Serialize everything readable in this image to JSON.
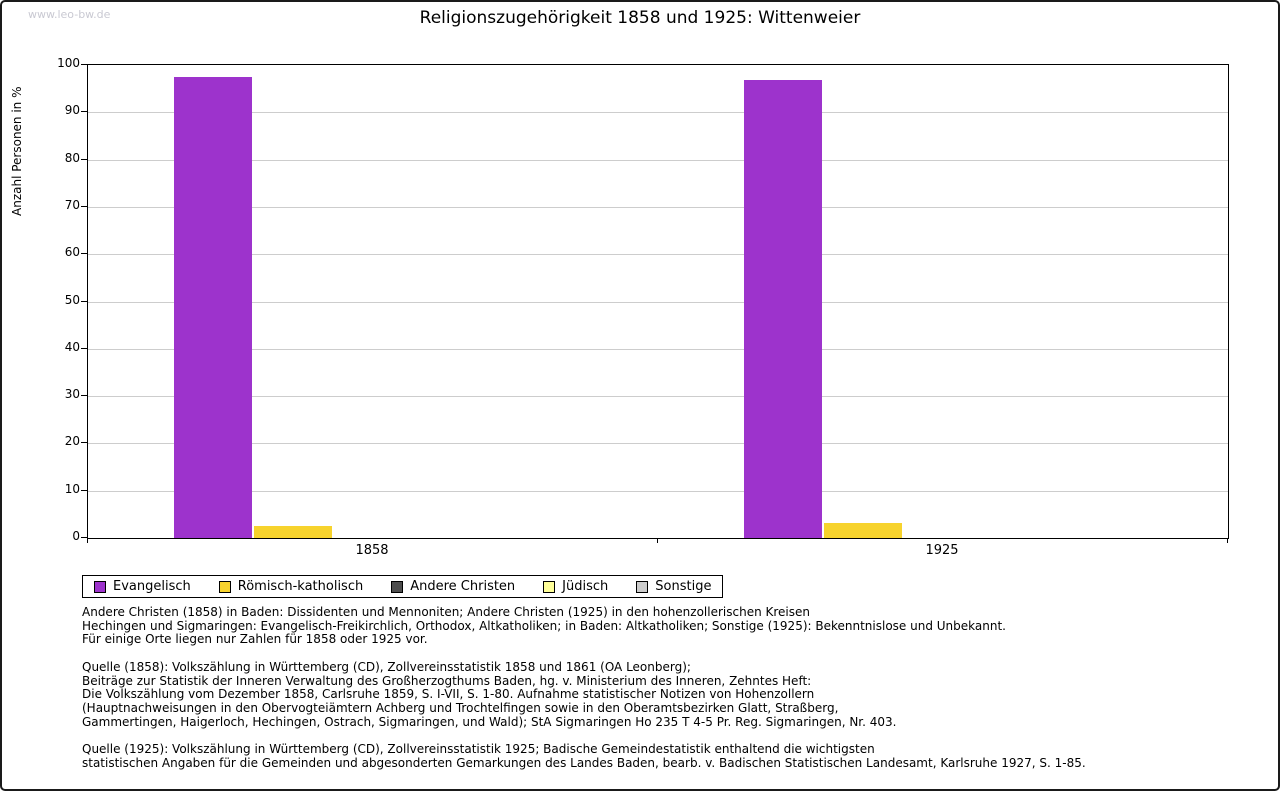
{
  "watermark": "www.leo-bw.de",
  "chart_data": {
    "type": "bar",
    "title": "Religionszugehörigkeit 1858 und 1925: Wittenweier",
    "xlabel": "",
    "ylabel": "Anzahl Personen in %",
    "ylim": [
      0,
      100
    ],
    "ytick_step": 10,
    "grid": true,
    "legend_position": "bottom-left",
    "categories": [
      "1858",
      "1925"
    ],
    "series": [
      {
        "name": "Evangelisch",
        "color": "#9d33cc",
        "values": [
          97.4,
          96.9
        ]
      },
      {
        "name": "Römisch-katholisch",
        "color": "#f7d32d",
        "values": [
          2.6,
          3.1
        ]
      },
      {
        "name": "Andere Christen",
        "color": "#4d4d4d",
        "values": [
          0,
          0
        ]
      },
      {
        "name": "Jüdisch",
        "color": "#ffff99",
        "values": [
          0,
          0
        ]
      },
      {
        "name": "Sonstige",
        "color": "#cccccc",
        "values": [
          0,
          0
        ]
      }
    ]
  },
  "notes": {
    "definitions": "Andere Christen (1858) in Baden: Dissidenten und Mennoniten; Andere Christen (1925) in den hohenzollerischen Kreisen\nHechingen und Sigmaringen: Evangelisch-Freikirchlich, Orthodox, Altkatholiken; in Baden: Altkatholiken; Sonstige (1925): Bekenntnislose und Unbekannt.\nFür einige Orte liegen nur Zahlen für 1858 oder 1925 vor.",
    "source_1858": "Quelle (1858): Volkszählung in Württemberg (CD), Zollvereinsstatistik 1858 und 1861 (OA Leonberg);\nBeiträge zur Statistik der Inneren Verwaltung des Großherzogthums Baden, hg. v. Ministerium des Inneren, Zehntes Heft:\nDie Volkszählung vom Dezember 1858, Carlsruhe 1859, S. I-VII, S. 1-80. Aufnahme statistischer Notizen von Hohenzollern\n(Hauptnachweisungen in den Obervogteiämtern Achberg und Trochtelfingen sowie in den Oberamtsbezirken Glatt, Straßberg,\nGammertingen, Haigerloch, Hechingen, Ostrach, Sigmaringen, und Wald); StA Sigmaringen Ho 235 T 4-5 Pr. Reg. Sigmaringen, Nr. 403.",
    "source_1925": "Quelle (1925): Volkszählung in Württemberg (CD), Zollvereinsstatistik 1925; Badische Gemeindestatistik enthaltend die wichtigsten\nstatistischen Angaben für die Gemeinden und abgesonderten Gemarkungen des Landes Baden, bearb. v. Badischen Statistischen Landesamt, Karlsruhe 1927, S. 1-85."
  }
}
